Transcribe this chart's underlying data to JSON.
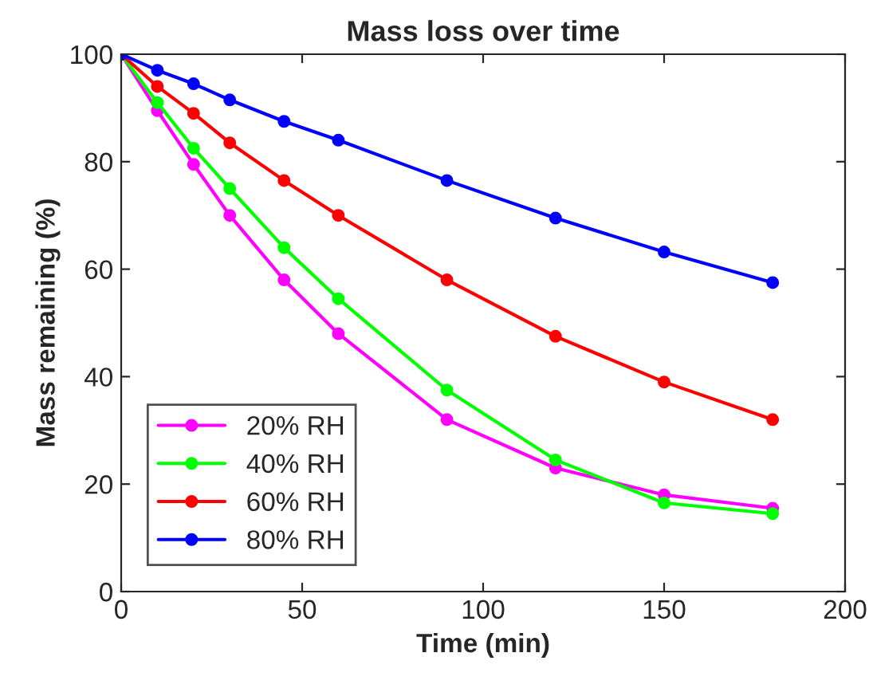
{
  "chart_data": {
    "type": "line",
    "title": "Mass loss over time",
    "xlabel": "Time (min)",
    "ylabel": "Mass remaining (%)",
    "x": [
      0,
      10,
      20,
      30,
      45,
      60,
      90,
      120,
      150,
      180
    ],
    "series": [
      {
        "name": "20% RH",
        "color": "#ff00ff",
        "values": [
          100,
          89.5,
          79.5,
          70,
          58,
          48,
          32,
          23,
          18,
          15.5
        ]
      },
      {
        "name": "40% RH",
        "color": "#00ff00",
        "values": [
          100,
          91,
          82.5,
          75,
          64,
          54.5,
          37.5,
          24.5,
          16.5,
          14.5
        ]
      },
      {
        "name": "60% RH",
        "color": "#ff0000",
        "values": [
          100,
          94,
          89,
          83.5,
          76.5,
          70,
          58,
          47.5,
          39,
          32
        ]
      },
      {
        "name": "80% RH",
        "color": "#0000ff",
        "values": [
          100,
          97,
          94.5,
          91.5,
          87.5,
          84,
          76.5,
          69.5,
          63.2,
          57.5
        ]
      }
    ],
    "xlim": [
      0,
      200
    ],
    "xticks": [
      0,
      50,
      100,
      150,
      200
    ],
    "ylim": [
      0,
      100
    ],
    "yticks": [
      0,
      20,
      40,
      60,
      80,
      100
    ],
    "grid": false,
    "legend": "bottom left",
    "marker": "circle",
    "line_style": "solid"
  }
}
